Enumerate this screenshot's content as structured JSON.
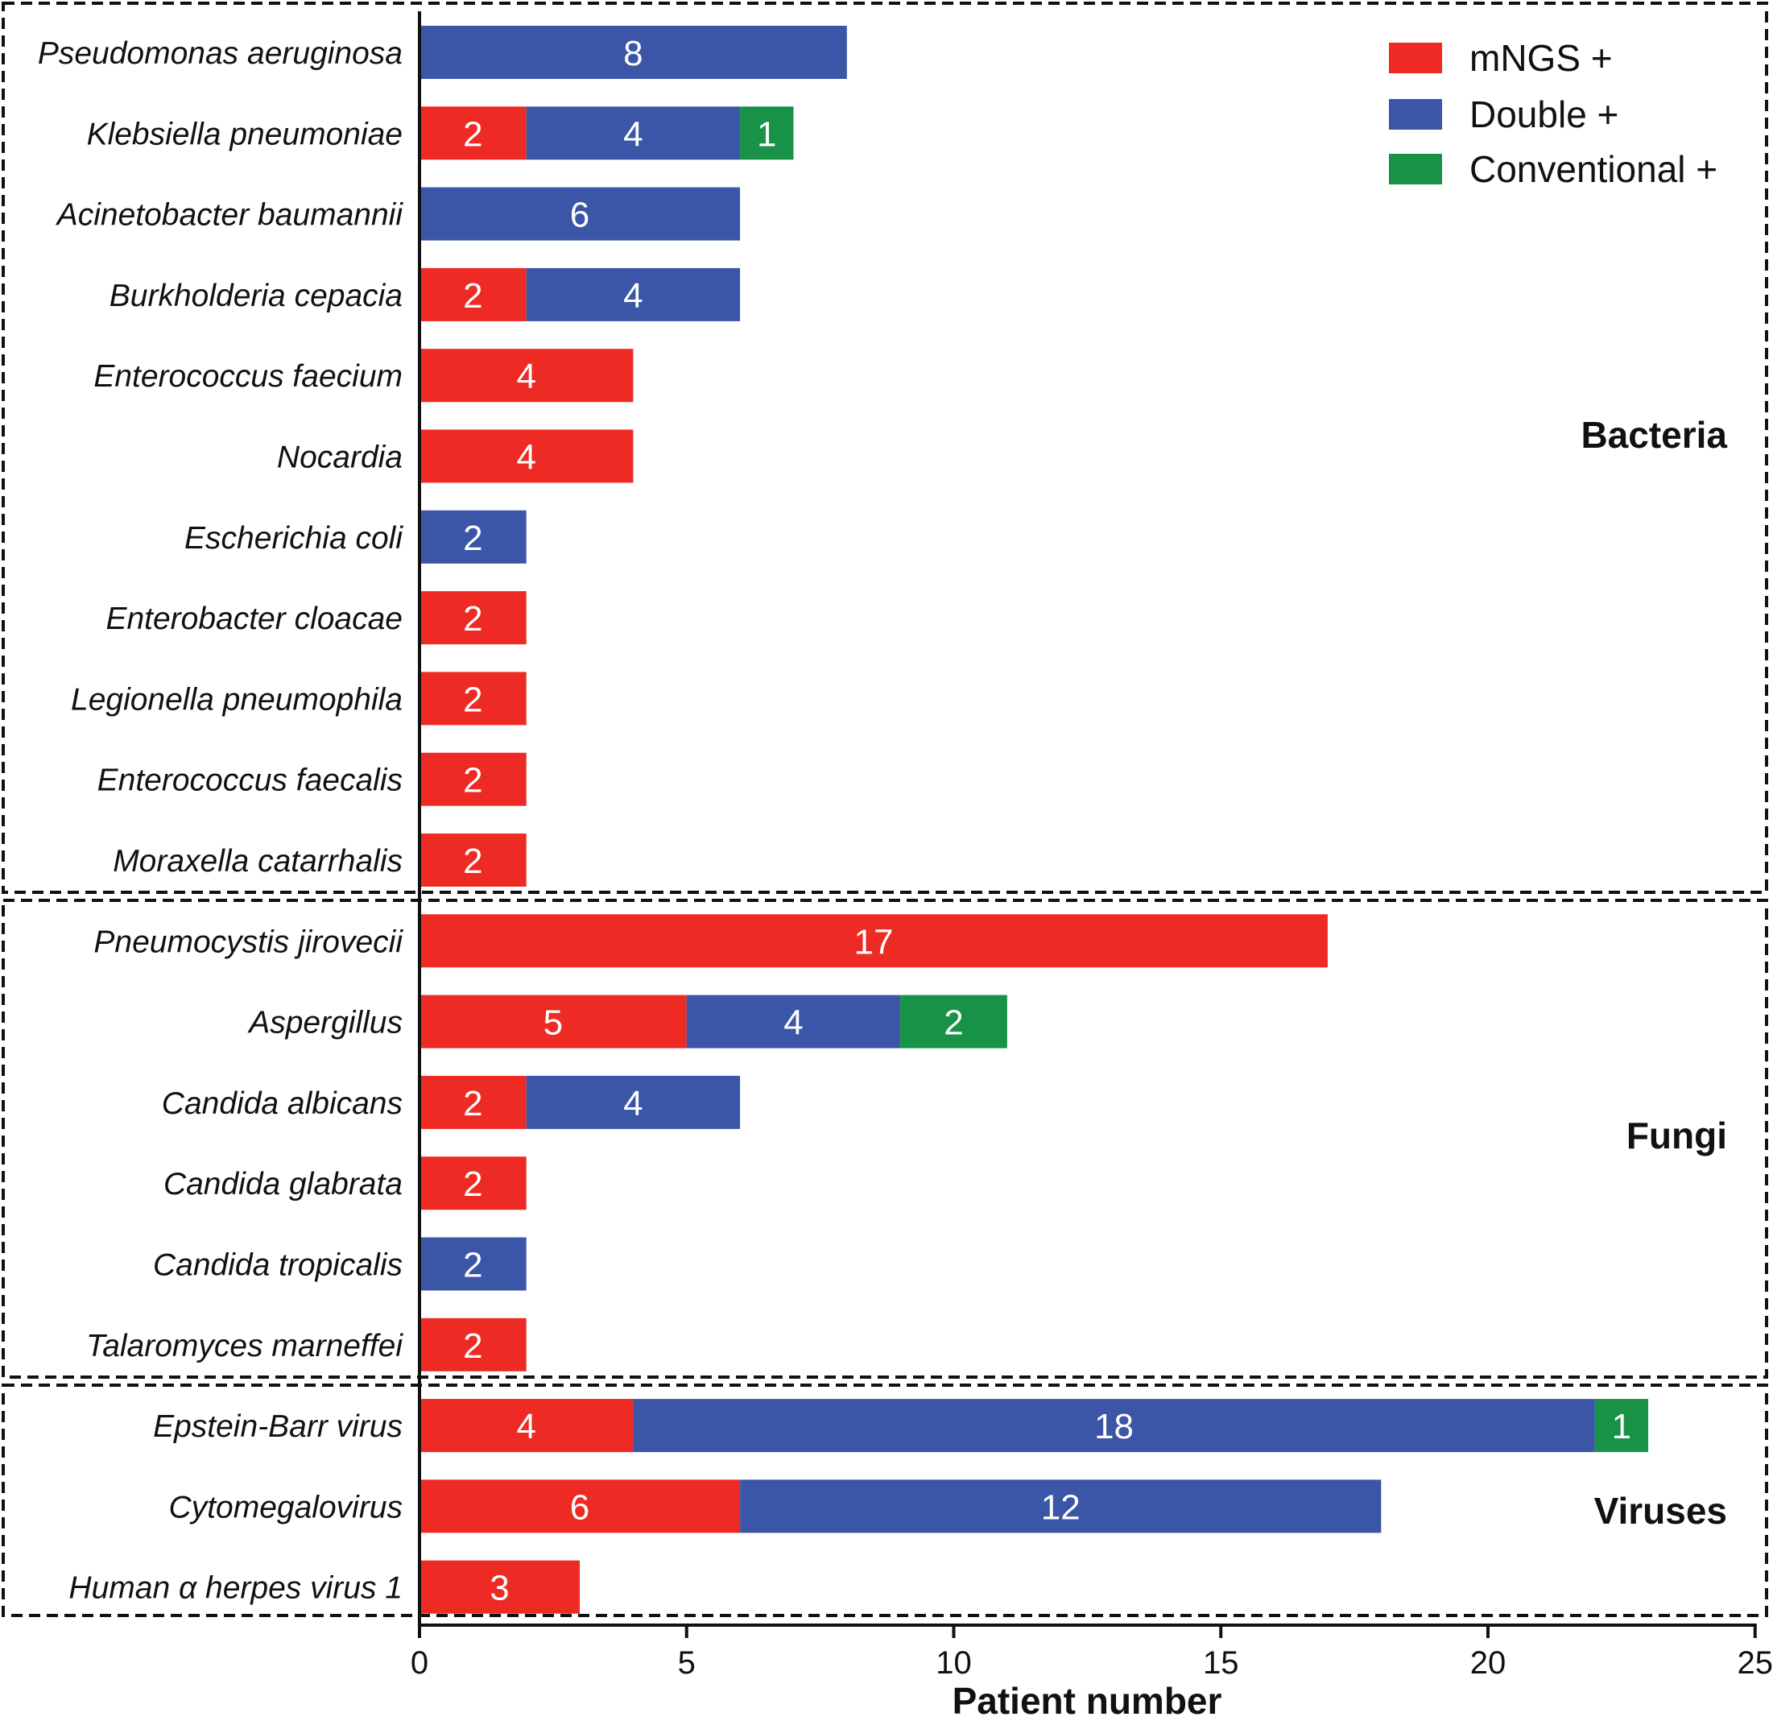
{
  "chart_data": {
    "type": "bar",
    "orientation": "horizontal",
    "stacked": true,
    "xlabel": "Patient number",
    "xlim": [
      0,
      25
    ],
    "xticks": [
      0,
      5,
      10,
      15,
      20,
      25
    ],
    "legend_position": "top-right",
    "series": [
      {
        "name": "mNGS +",
        "color": "#ee2a24"
      },
      {
        "name": "Double +",
        "color": "#3b55a7"
      },
      {
        "name": "Conventional +",
        "color": "#179246"
      }
    ],
    "groups": [
      {
        "name": "Bacteria",
        "categories": [
          "Pseudomonas aeruginosa",
          "Klebsiella pneumoniae",
          "Acinetobacter baumannii",
          "Burkholderia cepacia",
          "Enterococcus faecium",
          "Nocardia",
          "Escherichia coli",
          "Enterobacter cloacae",
          "Legionella pneumophila",
          "Enterococcus faecalis",
          "Moraxella catarrhalis"
        ]
      },
      {
        "name": "Fungi",
        "categories": [
          "Pneumocystis jirovecii",
          "Aspergillus",
          "Candida albicans",
          "Candida glabrata",
          "Candida tropicalis",
          "Talaromyces marneffei"
        ]
      },
      {
        "name": "Viruses",
        "categories": [
          "Epstein-Barr virus",
          "Cytomegalovirus",
          "Human α herpes virus 1"
        ]
      }
    ],
    "categories": [
      "Pseudomonas aeruginosa",
      "Klebsiella pneumoniae",
      "Acinetobacter baumannii",
      "Burkholderia cepacia",
      "Enterococcus faecium",
      "Nocardia",
      "Escherichia coli",
      "Enterobacter cloacae",
      "Legionella pneumophila",
      "Enterococcus faecalis",
      "Moraxella catarrhalis",
      "Pneumocystis jirovecii",
      "Aspergillus",
      "Candida albicans",
      "Candida glabrata",
      "Candida tropicalis",
      "Talaromyces marneffei",
      "Epstein-Barr virus",
      "Cytomegalovirus",
      "Human α herpes virus 1"
    ],
    "values": {
      "mNGS +": [
        0,
        2,
        0,
        2,
        4,
        4,
        0,
        2,
        2,
        2,
        2,
        17,
        5,
        2,
        2,
        0,
        2,
        4,
        6,
        3
      ],
      "Double +": [
        8,
        4,
        6,
        4,
        0,
        0,
        2,
        0,
        0,
        0,
        0,
        0,
        4,
        4,
        0,
        2,
        0,
        18,
        12,
        0
      ],
      "Conventional +": [
        0,
        1,
        0,
        0,
        0,
        0,
        0,
        0,
        0,
        0,
        0,
        0,
        2,
        0,
        0,
        0,
        0,
        1,
        0,
        0
      ]
    }
  }
}
